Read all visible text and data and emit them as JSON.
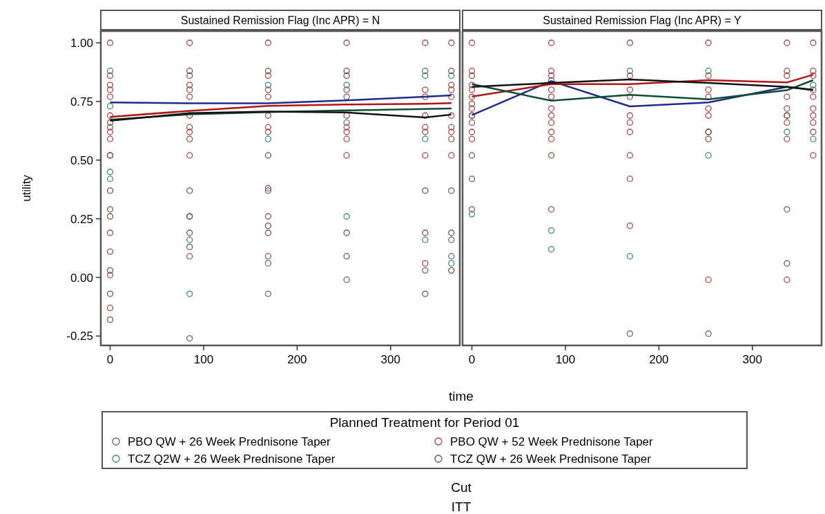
{
  "chart_data": [
    {
      "type": "scatter",
      "title": "Sustained Remission Flag (Inc APR) = N",
      "xlabel": "time",
      "ylabel": "utility",
      "legend_title": "Planned Treatment for Period 01",
      "legend": "bottom",
      "marker": "circle",
      "annotations": [
        "Cut",
        "ITT"
      ],
      "xlim": [
        -10,
        374
      ],
      "ylim": [
        -0.29,
        1.05
      ],
      "xticks": [
        0,
        100,
        200,
        300
      ],
      "yticks": [
        {
          "value": -0.25,
          "label": "-0.25"
        },
        {
          "value": 0,
          "label": "0.00"
        },
        {
          "value": 0.25,
          "label": "0.25"
        },
        {
          "value": 0.5,
          "label": "0.50"
        },
        {
          "value": 0.75,
          "label": "0.75"
        },
        {
          "value": 1,
          "label": "1.00"
        }
      ],
      "series": [
        {
          "name": "PBO QW + 26 Week Prednisone Taper",
          "color": "#5a63b0",
          "x": [
            85,
            85,
            169,
            169,
            169,
            253,
            253,
            337,
            337,
            365,
            365
          ],
          "values": [
            0.26,
            -0.26,
            0.38,
            0.06,
            -0.07,
            0.66,
            -0.01,
            0.88,
            0.03,
            0.16,
            0.09
          ]
        },
        {
          "name": "PBO QW + 52 Week Prednisone Taper",
          "color": "#b04545",
          "x": [
            0,
            0,
            0,
            0,
            0,
            0,
            0,
            0,
            0,
            0,
            0,
            0,
            0,
            0,
            85,
            85,
            85,
            85,
            85,
            85,
            85,
            85,
            85,
            85,
            85,
            169,
            169,
            169,
            169,
            169,
            169,
            169,
            169,
            169,
            169,
            253,
            253,
            253,
            253,
            253,
            253,
            253,
            253,
            337,
            337,
            337,
            337,
            337,
            337,
            337,
            337,
            365,
            365,
            365,
            365,
            365,
            365,
            365,
            365,
            365
          ],
          "values": [
            1.0,
            0.86,
            0.82,
            0.8,
            0.77,
            0.69,
            0.64,
            0.62,
            0.59,
            0.52,
            0.19,
            0.11,
            0.01,
            -0.13,
            1.0,
            0.86,
            0.82,
            0.8,
            0.77,
            0.69,
            0.64,
            0.62,
            0.59,
            0.52,
            0.09,
            1.0,
            0.86,
            0.8,
            0.77,
            0.69,
            0.64,
            0.62,
            0.37,
            0.26,
            0.09,
            1.0,
            0.8,
            0.77,
            0.69,
            0.64,
            0.62,
            0.59,
            0.52,
            1.0,
            0.8,
            0.77,
            0.69,
            0.64,
            0.62,
            0.52,
            0.06,
            1.0,
            0.82,
            0.8,
            0.77,
            0.69,
            0.64,
            0.62,
            0.59,
            0.52
          ]
        },
        {
          "name": "TCZ Q2W + 26 Week Prednisone Taper",
          "color": "#3a8a78",
          "x": [
            0,
            0,
            0,
            0,
            85,
            85,
            169,
            169,
            253,
            253,
            337,
            337,
            337,
            365,
            365
          ],
          "values": [
            0.88,
            0.73,
            0.45,
            0.42,
            0.16,
            -0.07,
            0.82,
            0.59,
            0.82,
            0.26,
            0.86,
            0.59,
            0.16,
            0.86,
            0.06
          ]
        },
        {
          "name": "TCZ QW + 26 Week Prednisone Taper",
          "color": "#7d5045",
          "x": [
            0,
            0,
            0,
            0,
            0,
            0,
            0,
            0,
            85,
            85,
            85,
            85,
            85,
            169,
            169,
            169,
            169,
            253,
            253,
            253,
            253,
            337,
            337,
            337,
            365,
            365,
            365,
            365
          ],
          "values": [
            0.66,
            0.52,
            0.37,
            0.29,
            0.26,
            0.03,
            -0.07,
            -0.18,
            0.88,
            0.37,
            0.26,
            0.19,
            0.13,
            0.88,
            0.52,
            0.22,
            0.19,
            0.88,
            0.86,
            0.19,
            0.09,
            0.37,
            0.19,
            -0.07,
            0.88,
            0.37,
            0.19,
            0.03
          ]
        },
        {
          "type": "line",
          "marker": "none",
          "color": "#1e2a8c",
          "x": [
            0,
            85,
            169,
            253,
            337,
            365
          ],
          "values": [
            0.746,
            0.742,
            0.742,
            0.755,
            0.77,
            0.776
          ]
        },
        {
          "type": "line",
          "marker": "none",
          "color": "#b01515",
          "x": [
            0,
            85,
            169,
            253,
            337,
            365
          ],
          "values": [
            0.684,
            0.71,
            0.731,
            0.737,
            0.74,
            0.743
          ]
        },
        {
          "type": "line",
          "marker": "none",
          "color": "#0f4d30",
          "x": [
            0,
            85,
            169,
            253,
            337,
            365
          ],
          "values": [
            0.672,
            0.695,
            0.705,
            0.712,
            0.718,
            0.72
          ]
        },
        {
          "type": "line",
          "marker": "none",
          "color": "#111111",
          "x": [
            0,
            85,
            169,
            253,
            337,
            365
          ],
          "values": [
            0.668,
            0.7,
            0.707,
            0.703,
            0.682,
            0.694
          ]
        }
      ]
    },
    {
      "type": "scatter",
      "title": "Sustained Remission Flag (Inc APR) = Y",
      "marker": "circle",
      "tick_labels": "x",
      "xlim": [
        -10,
        374
      ],
      "ylim": [
        -0.29,
        1.05
      ],
      "xticks": [
        0,
        100,
        200,
        300
      ],
      "series": [
        {
          "color": "#5a63b0",
          "x": [
            0,
            85,
            169,
            253
          ],
          "values": [
            0.69,
            0.84,
            -0.24,
            -0.24
          ]
        },
        {
          "color": "#b04545",
          "x": [
            0,
            0,
            0,
            0,
            0,
            0,
            0,
            0,
            0,
            0,
            0,
            0,
            0,
            85,
            85,
            85,
            85,
            85,
            85,
            85,
            85,
            85,
            85,
            85,
            169,
            169,
            169,
            169,
            169,
            169,
            169,
            169,
            169,
            169,
            253,
            253,
            253,
            253,
            253,
            253,
            253,
            253,
            253,
            337,
            337,
            337,
            337,
            337,
            337,
            337,
            337,
            337,
            337,
            365,
            365,
            365,
            365,
            365,
            365,
            365,
            365,
            365
          ],
          "values": [
            1.0,
            0.88,
            0.86,
            0.82,
            0.8,
            0.77,
            0.74,
            0.72,
            0.69,
            0.66,
            0.62,
            0.59,
            0.29,
            1.0,
            0.88,
            0.86,
            0.8,
            0.77,
            0.72,
            0.69,
            0.66,
            0.62,
            0.59,
            0.29,
            1.0,
            0.86,
            0.8,
            0.77,
            0.69,
            0.66,
            0.62,
            0.52,
            0.42,
            0.22,
            1.0,
            0.86,
            0.8,
            0.77,
            0.72,
            0.69,
            0.62,
            0.59,
            -0.01,
            1.0,
            0.88,
            0.86,
            0.77,
            0.72,
            0.69,
            0.66,
            0.59,
            0.29,
            -0.01,
            1.0,
            0.88,
            0.86,
            0.8,
            0.77,
            0.72,
            0.69,
            0.66,
            0.52
          ]
        },
        {
          "color": "#3a8a78",
          "x": [
            0,
            85,
            85,
            169,
            169,
            253,
            253,
            337,
            365,
            365
          ],
          "values": [
            0.27,
            0.2,
            0.12,
            0.88,
            0.09,
            0.88,
            0.52,
            0.62,
            0.59,
            0.82
          ]
        },
        {
          "color": "#7d5045",
          "x": [
            0,
            0,
            85,
            253,
            337,
            337,
            365
          ],
          "values": [
            0.52,
            0.42,
            0.52,
            0.62,
            0.69,
            0.06,
            0.62
          ]
        },
        {
          "type": "line",
          "marker": "none",
          "color": "#1e2a8c",
          "x": [
            0,
            85,
            169,
            253,
            337,
            365
          ],
          "values": [
            0.692,
            0.837,
            0.729,
            0.746,
            0.812,
            0.798
          ]
        },
        {
          "type": "line",
          "marker": "none",
          "color": "#b01515",
          "x": [
            0,
            85,
            169,
            253,
            337,
            365
          ],
          "values": [
            0.771,
            0.824,
            0.824,
            0.841,
            0.831,
            0.864
          ]
        },
        {
          "type": "line",
          "marker": "none",
          "color": "#0f4d30",
          "x": [
            0,
            85,
            169,
            253,
            337,
            365
          ],
          "values": [
            0.824,
            0.753,
            0.778,
            0.759,
            0.798,
            0.841
          ]
        },
        {
          "type": "line",
          "marker": "none",
          "color": "#111111",
          "x": [
            0,
            85,
            169,
            253,
            337,
            365
          ],
          "values": [
            0.812,
            0.829,
            0.844,
            0.829,
            0.812,
            0.8
          ]
        }
      ]
    }
  ]
}
